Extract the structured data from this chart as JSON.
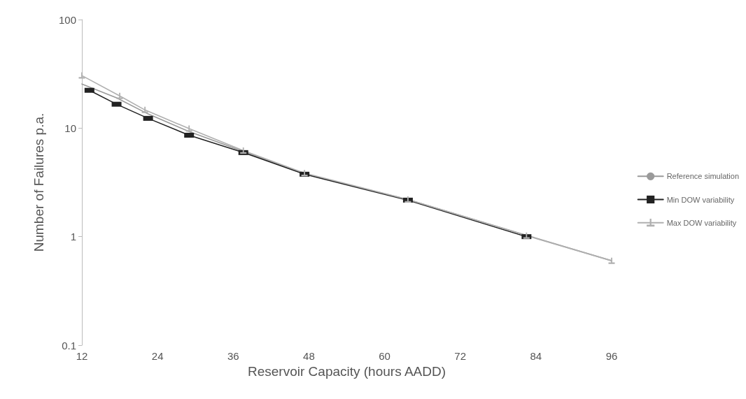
{
  "chart_data": {
    "type": "line",
    "xlabel": "Reservoir Capacity (hours AADD)",
    "ylabel": "Number of Failures p.a.",
    "log": "y",
    "grid": false,
    "legend": "right",
    "xlim": [
      12,
      96
    ],
    "xticks": [
      12,
      24,
      36,
      48,
      60,
      72,
      84,
      96
    ],
    "ylim": [
      0.1,
      100
    ],
    "yticks": [
      0.1,
      1,
      10,
      100
    ],
    "series": [
      {
        "name": "Reference simulation",
        "color": "#9a9a9a",
        "marker": "none",
        "x": [
          12,
          17.5,
          22.5,
          29,
          37.6,
          47.3,
          63.7,
          82.5,
          96
        ],
        "values": [
          25.5,
          19,
          13.5,
          9.3,
          6.1,
          3.8,
          2.2,
          1.03,
          0.6
        ]
      },
      {
        "name": "Min DOW variability",
        "color": "#222222",
        "marker": "square",
        "x": [
          13.2,
          17.5,
          22.5,
          29,
          37.6,
          47.3,
          63.7,
          82.5
        ],
        "values": [
          22.3,
          16.6,
          12.3,
          8.6,
          5.95,
          3.76,
          2.17,
          1.0
        ]
      },
      {
        "name": "Max DOW variability",
        "color": "#b0b0b0",
        "marker": "cross",
        "x": [
          12,
          18,
          22,
          29,
          37.6,
          47.3,
          63.7,
          82.5,
          96
        ],
        "values": [
          30.5,
          19.8,
          14.7,
          9.9,
          6.2,
          3.85,
          2.2,
          1.02,
          0.6
        ]
      }
    ]
  }
}
